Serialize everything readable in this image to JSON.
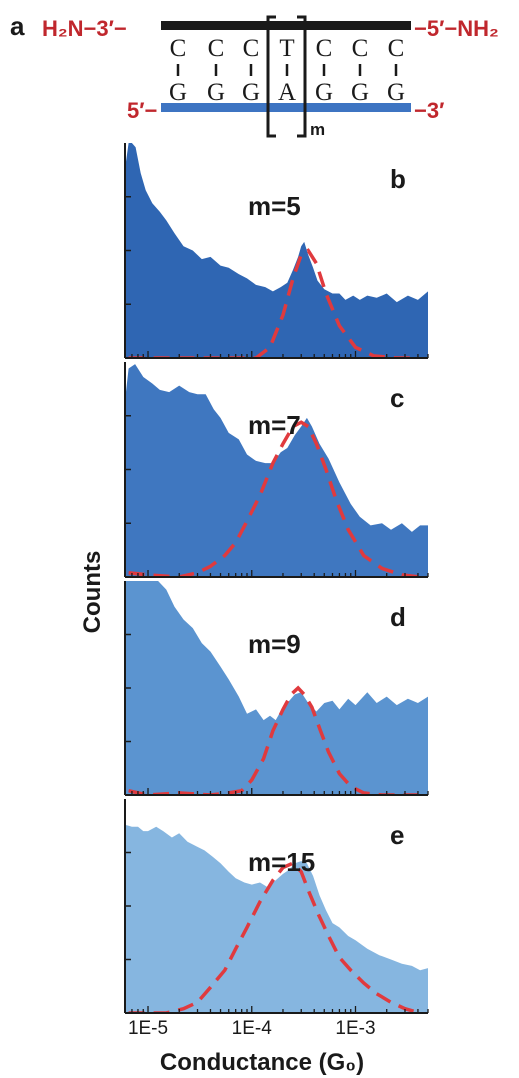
{
  "schematic": {
    "panel_label": "a",
    "top_left": "H₂N−3′−",
    "top_right": "−5′−NH₂",
    "bottom_left": "5′−",
    "bottom_right": "−3′",
    "top_bases": [
      "C",
      "C",
      "C",
      "T",
      "C",
      "C",
      "C"
    ],
    "bottom_bases": [
      "G",
      "G",
      "G",
      "A",
      "G",
      "G",
      "G"
    ],
    "repeat_label": "m",
    "colors": {
      "top_strand": "#1a1a1a",
      "bottom_strand": "#3d74c2",
      "end_labels": "#c0272d"
    }
  },
  "chart_data": {
    "type": "area",
    "xlabel": "Conductance (G₀)",
    "ylabel": "Counts",
    "xscale": "log",
    "xlim": [
      6e-06,
      0.005
    ],
    "xticks": [
      1e-05,
      0.0001,
      0.001
    ],
    "xtick_labels": [
      "1E-5",
      "1E-4",
      "1E-3"
    ],
    "fit_style": "red dashed gaussian",
    "fit_color": "#e03a3e",
    "panels": [
      {
        "panel_label": "b",
        "annotation": "m=5",
        "fill_color": "#2f66b3",
        "ylim": [
          0,
          1
        ],
        "yticks": [
          0.25,
          0.5,
          0.75
        ],
        "histogram": {
          "x": [
            6e-06,
            6.5e-06,
            7e-06,
            7.6e-06,
            8.5e-06,
            9.5e-06,
            1.1e-05,
            1.3e-05,
            1.5e-05,
            1.8e-05,
            2.2e-05,
            2.7e-05,
            3.3e-05,
            4e-05,
            5e-05,
            6e-05,
            7.5e-05,
            9e-05,
            0.00011,
            0.000135,
            0.00016,
            0.00019,
            0.00022,
            0.00025,
            0.00028,
            0.0003,
            0.00032,
            0.00035,
            0.00039,
            0.00043,
            0.0005,
            0.0006,
            0.0007,
            0.0008,
            0.00095,
            0.0011,
            0.0013,
            0.0016,
            0.002,
            0.0025,
            0.0032,
            0.004,
            0.005
          ],
          "counts": [
            0.88,
            1.0,
            1.0,
            0.98,
            0.86,
            0.78,
            0.72,
            0.68,
            0.64,
            0.58,
            0.52,
            0.5,
            0.46,
            0.47,
            0.43,
            0.42,
            0.39,
            0.37,
            0.34,
            0.33,
            0.31,
            0.33,
            0.35,
            0.41,
            0.47,
            0.52,
            0.54,
            0.48,
            0.42,
            0.36,
            0.32,
            0.3,
            0.3,
            0.27,
            0.29,
            0.27,
            0.29,
            0.28,
            0.3,
            0.26,
            0.29,
            0.27,
            0.31
          ]
        },
        "fit": {
          "x": [
            6.5e-06,
            1e-05,
            1.5e-05,
            2e-05,
            3e-05,
            5e-05,
            8e-05,
            0.00011,
            0.00015,
            0.0002,
            0.00025,
            0.0003,
            0.00035,
            0.00042,
            0.00052,
            0.0007,
            0.001,
            0.0015,
            0.0025,
            0.004
          ],
          "counts": [
            0.0,
            0.0,
            0.0,
            0.0,
            0.0,
            0.0,
            0.0,
            0.0,
            0.05,
            0.2,
            0.37,
            0.48,
            0.5,
            0.44,
            0.3,
            0.15,
            0.05,
            0.01,
            0.0,
            0.0
          ]
        }
      },
      {
        "panel_label": "c",
        "annotation": "m=7",
        "fill_color": "#3f77c0",
        "ylim": [
          0,
          1
        ],
        "yticks": [
          0.25,
          0.5,
          0.75
        ],
        "histogram": {
          "x": [
            6e-06,
            6.5e-06,
            7.5e-06,
            9e-06,
            1.1e-05,
            1.3e-05,
            1.6e-05,
            2e-05,
            2.5e-05,
            3e-05,
            3.6e-05,
            4.3e-05,
            5e-05,
            6e-05,
            7.5e-05,
            9e-05,
            0.00011,
            0.000135,
            0.00016,
            0.00019,
            0.00022,
            0.00026,
            0.0003,
            0.00034,
            0.00038,
            0.00045,
            0.00055,
            0.0007,
            0.0009,
            0.0011,
            0.0014,
            0.0018,
            0.0022,
            0.0028,
            0.0035,
            0.0042,
            0.005
          ],
          "counts": [
            0.82,
            0.97,
            0.99,
            0.93,
            0.9,
            0.87,
            0.86,
            0.89,
            0.86,
            0.85,
            0.85,
            0.78,
            0.74,
            0.67,
            0.64,
            0.57,
            0.54,
            0.53,
            0.53,
            0.58,
            0.6,
            0.66,
            0.7,
            0.74,
            0.7,
            0.62,
            0.55,
            0.44,
            0.34,
            0.28,
            0.24,
            0.25,
            0.22,
            0.25,
            0.21,
            0.24,
            0.24
          ]
        },
        "fit": {
          "x": [
            6.5e-06,
            1e-05,
            2e-05,
            3e-05,
            4e-05,
            5.5e-05,
            7e-05,
            9e-05,
            0.00012,
            0.00016,
            0.0002,
            0.00025,
            0.0003,
            0.00035,
            0.00042,
            0.00052,
            0.00065,
            0.00085,
            0.0012,
            0.0018,
            0.0028,
            0.0042
          ],
          "counts": [
            0.02,
            0.01,
            0.0,
            0.02,
            0.05,
            0.1,
            0.16,
            0.26,
            0.38,
            0.53,
            0.62,
            0.7,
            0.72,
            0.7,
            0.62,
            0.5,
            0.36,
            0.22,
            0.1,
            0.04,
            0.01,
            0.0
          ]
        }
      },
      {
        "panel_label": "d",
        "annotation": "m=9",
        "fill_color": "#5b94d0",
        "ylim": [
          0,
          1
        ],
        "yticks": [
          0.25,
          0.5,
          0.75
        ],
        "histogram": {
          "x": [
            6e-06,
            7e-06,
            8e-06,
            9e-06,
            1e-05,
            1.1e-05,
            1.25e-05,
            1.5e-05,
            1.8e-05,
            2.2e-05,
            2.7e-05,
            3.3e-05,
            4e-05,
            5e-05,
            6e-05,
            7.5e-05,
            9e-05,
            0.00011,
            0.00013,
            0.00015,
            0.00017,
            0.0002,
            0.00023,
            0.00026,
            0.0003,
            0.00035,
            0.00042,
            0.0005,
            0.0006,
            0.0007,
            0.00085,
            0.001,
            0.0013,
            0.0016,
            0.002,
            0.0025,
            0.0032,
            0.004,
            0.005
          ],
          "counts": [
            1.0,
            1.0,
            1.0,
            1.0,
            1.0,
            1.0,
            1.0,
            0.96,
            0.88,
            0.82,
            0.78,
            0.71,
            0.67,
            0.6,
            0.54,
            0.46,
            0.38,
            0.4,
            0.35,
            0.37,
            0.35,
            0.41,
            0.44,
            0.47,
            0.48,
            0.43,
            0.39,
            0.43,
            0.44,
            0.4,
            0.45,
            0.42,
            0.48,
            0.43,
            0.46,
            0.42,
            0.45,
            0.43,
            0.46
          ]
        },
        "fit": {
          "x": [
            6.5e-06,
            1e-05,
            2e-05,
            4e-05,
            6e-05,
            8e-05,
            0.0001,
            0.00013,
            0.00016,
            0.0002,
            0.00024,
            0.00028,
            0.00032,
            0.00038,
            0.00046,
            0.00055,
            0.0007,
            0.0009,
            0.0012,
            0.0018,
            0.0028,
            0.004
          ],
          "counts": [
            0.02,
            0.0,
            0.01,
            0.0,
            0.01,
            0.02,
            0.07,
            0.17,
            0.3,
            0.4,
            0.47,
            0.5,
            0.47,
            0.41,
            0.3,
            0.2,
            0.1,
            0.04,
            0.01,
            0.0,
            0.0,
            0.0
          ]
        }
      },
      {
        "panel_label": "e",
        "annotation": "m=15",
        "fill_color": "#86b6e0",
        "ylim": [
          0,
          1
        ],
        "yticks": [
          0.25,
          0.5,
          0.75
        ],
        "histogram": {
          "x": [
            6e-06,
            7e-06,
            8e-06,
            9e-06,
            1e-05,
            1.2e-05,
            1.4e-05,
            1.7e-05,
            2e-05,
            2.4e-05,
            2.9e-05,
            3.5e-05,
            4.2e-05,
            5e-05,
            6e-05,
            7e-05,
            8.5e-05,
            0.0001,
            0.00012,
            0.00014,
            0.00017,
            0.0002,
            0.00023,
            0.00026,
            0.0003,
            0.00034,
            0.00039,
            0.00045,
            0.00052,
            0.0006,
            0.0007,
            0.00085,
            0.001,
            0.0013,
            0.0017,
            0.0022,
            0.0028,
            0.0035,
            0.0042,
            0.005
          ],
          "counts": [
            0.88,
            0.87,
            0.87,
            0.85,
            0.85,
            0.87,
            0.85,
            0.82,
            0.84,
            0.8,
            0.78,
            0.76,
            0.73,
            0.7,
            0.66,
            0.63,
            0.61,
            0.6,
            0.61,
            0.59,
            0.62,
            0.65,
            0.67,
            0.7,
            0.71,
            0.7,
            0.64,
            0.55,
            0.48,
            0.42,
            0.4,
            0.36,
            0.34,
            0.3,
            0.27,
            0.25,
            0.23,
            0.22,
            0.2,
            0.21
          ]
        },
        "fit": {
          "x": [
            6.5e-06,
            1e-05,
            1.5e-05,
            2.2e-05,
            3e-05,
            4e-05,
            5.5e-05,
            7e-05,
            9e-05,
            0.00012,
            0.00016,
            0.0002,
            0.00025,
            0.0003,
            0.00036,
            0.00044,
            0.00055,
            0.0007,
            0.0009,
            0.0012,
            0.0016,
            0.0022,
            0.003,
            0.0042
          ],
          "counts": [
            0.0,
            0.0,
            0.0,
            0.02,
            0.05,
            0.12,
            0.2,
            0.3,
            0.4,
            0.52,
            0.62,
            0.68,
            0.7,
            0.66,
            0.56,
            0.46,
            0.36,
            0.26,
            0.2,
            0.14,
            0.09,
            0.05,
            0.02,
            0.0
          ]
        }
      }
    ]
  }
}
